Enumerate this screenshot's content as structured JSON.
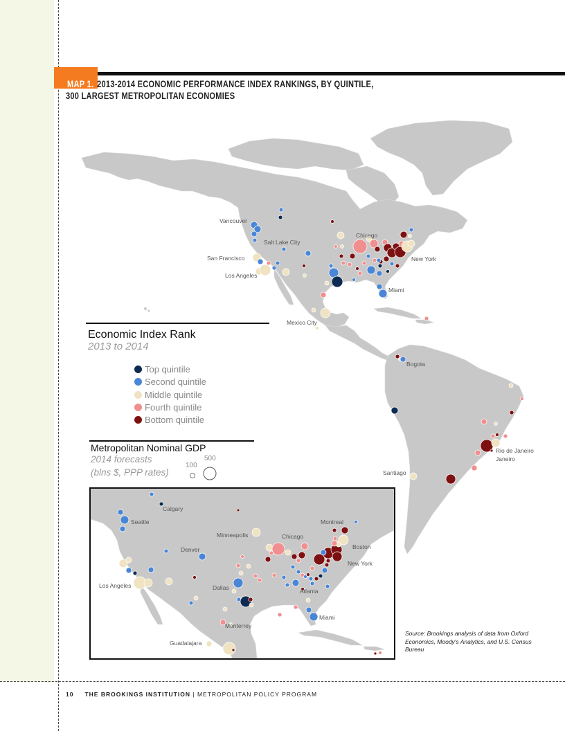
{
  "header": {
    "map_label": "MAP 1.",
    "title_line1": "2013-2014 ECONOMIC PERFORMANCE INDEX RANKINGS, BY QUINTILE,",
    "title_line2": "300 LARGEST METROPOLITAN ECONOMIES"
  },
  "legend": {
    "title": "Economic Index Rank",
    "subtitle": "2013 to 2014",
    "items": [
      {
        "label": "Top quintile",
        "color": "#0d2b52"
      },
      {
        "label": "Second quintile",
        "color": "#4a86d6"
      },
      {
        "label": "Middle quintile",
        "color": "#efe3c2"
      },
      {
        "label": "Fourth quintile",
        "color": "#f08f8f"
      },
      {
        "label": "Bottom quintile",
        "color": "#7d1111"
      }
    ]
  },
  "gdp_legend": {
    "title": "Metropolitan Nominal GDP",
    "line1": "2014 forecasts",
    "line2": "(blns $, PPP rates)",
    "small_value": "100",
    "large_value": "500"
  },
  "main_map_cities": [
    "Vancouver",
    "Salt Lake City",
    "San Francisco",
    "Los Angeles",
    "Chicago",
    "New York",
    "Miami",
    "Mexico City",
    "Bogota",
    "Rio de Janeiro",
    "Santiago"
  ],
  "inset_cities": [
    "Calgary",
    "Seattle",
    "Denver",
    "Minneapolis",
    "Chicago",
    "Montreal",
    "Boston",
    "New York",
    "Los Angeles",
    "Dallas",
    "Atlanta",
    "Miami",
    "Monterrey",
    "Guadalajara"
  ],
  "source": "Source: Brookings analysis of data from Oxford Economics, Moody's Analytics, and U.S. Census Bureau",
  "footer": {
    "page_number": "10",
    "institution": "THE BROOKINGS INSTITUTION",
    "separator": "|",
    "program": "METROPOLITAN POLICY PROGRAM"
  },
  "colors": {
    "land": "#c8c8c8",
    "top": "#0d2b52",
    "second": "#4a86d6",
    "middle": "#efe3c2",
    "fourth": "#f08f8f",
    "bottom": "#7d1111",
    "accent": "#f47b20"
  }
}
